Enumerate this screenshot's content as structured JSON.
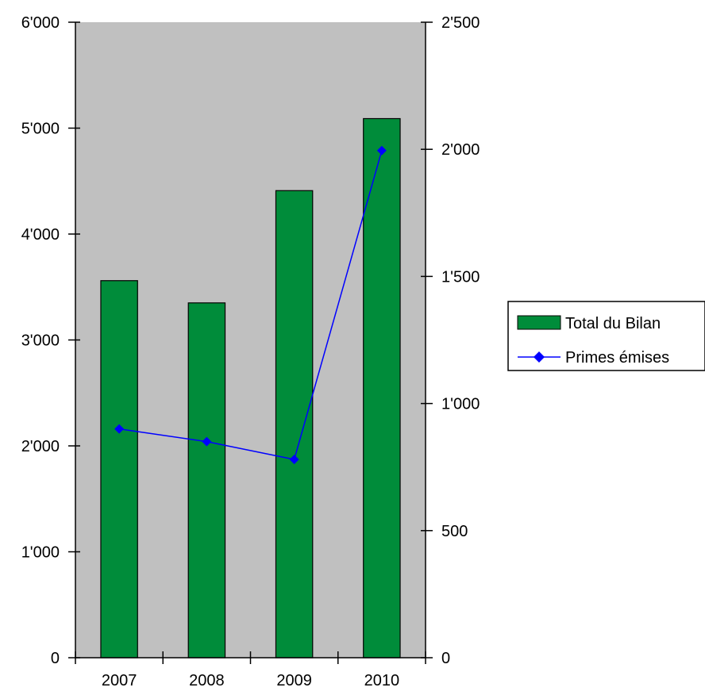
{
  "chart_data": {
    "type": "bar",
    "categories": [
      "2007",
      "2008",
      "2009",
      "2010"
    ],
    "series": [
      {
        "name": "Total du Bilan",
        "type": "bar",
        "axis": "left",
        "values": [
          3560,
          3350,
          4410,
          5090
        ],
        "color": "#008C3A"
      },
      {
        "name": "Primes émises",
        "type": "line",
        "axis": "right",
        "values": [
          900,
          850,
          780,
          1995
        ],
        "color": "#0000FF"
      }
    ],
    "left_axis": {
      "ylim": [
        0,
        6000
      ],
      "ticks": [
        0,
        1000,
        2000,
        3000,
        4000,
        5000,
        6000
      ],
      "tick_labels": [
        "0",
        "1'000",
        "2'000",
        "3'000",
        "4'000",
        "5'000",
        "6'000"
      ]
    },
    "right_axis": {
      "ylim": [
        0,
        2500
      ],
      "ticks": [
        0,
        500,
        1000,
        1500,
        2000,
        2500
      ],
      "tick_labels": [
        "0",
        "500",
        "1'000",
        "1'500",
        "2'000",
        "2'500"
      ]
    },
    "plot_background": "#C0C0C0",
    "grid": false,
    "legend_position": "right"
  }
}
